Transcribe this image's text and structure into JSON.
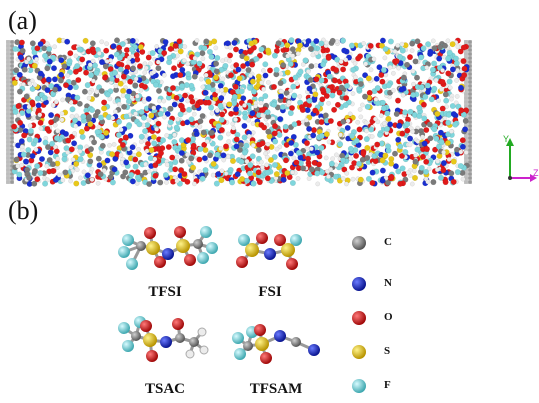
{
  "panels": {
    "a": {
      "label": "(a)"
    },
    "b": {
      "label": "(b)"
    }
  },
  "axes": {
    "y_label": "Y",
    "z_label": "Z",
    "y_color": "#22aa22",
    "z_color": "#cc22cc"
  },
  "molecules": [
    {
      "name": "TFSI"
    },
    {
      "name": "FSI"
    },
    {
      "name": "TSAC"
    },
    {
      "name": "TFSAM"
    }
  ],
  "legend": [
    {
      "symbol": "C",
      "color": "#7a7a7a"
    },
    {
      "symbol": "N",
      "color": "#1a2fd0"
    },
    {
      "symbol": "O",
      "color": "#e01a1a"
    },
    {
      "symbol": "S",
      "color": "#e8c81a"
    },
    {
      "symbol": "F",
      "color": "#7fd6dc"
    }
  ],
  "atom_colors": {
    "C": "#7a7a7a",
    "N": "#1a2fd0",
    "O": "#e01a1a",
    "S": "#e8c81a",
    "F": "#7fd6dc",
    "H": "#ececec"
  }
}
